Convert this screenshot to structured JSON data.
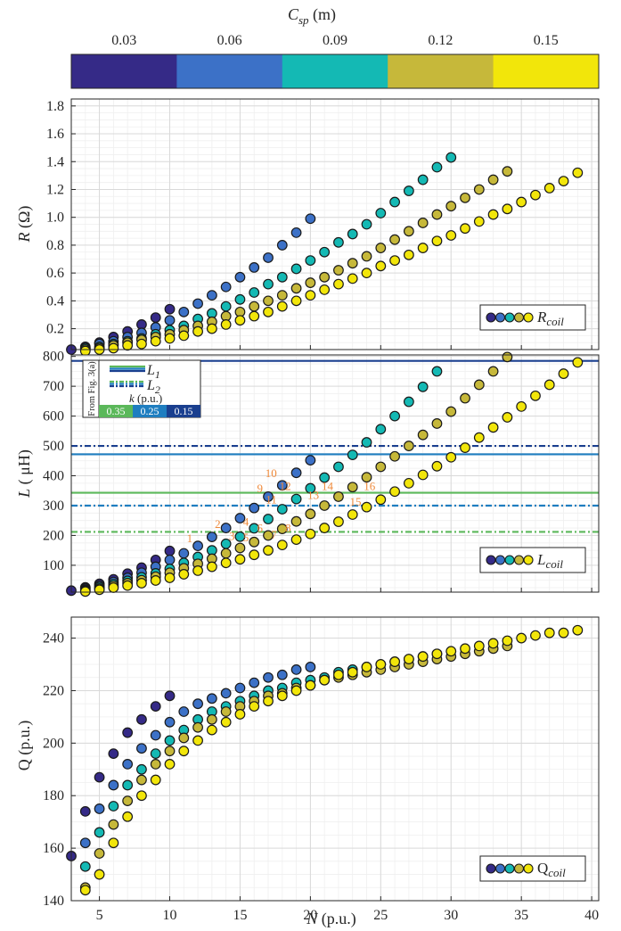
{
  "colors": {
    "cmap": [
      "#352a87",
      "#3c71c7",
      "#14b9b4",
      "#c6b83a",
      "#f2e60a"
    ],
    "grid": "#d9d9d9",
    "axes": "#262626",
    "annot": "#ef8a3b",
    "l1": "#1f5aa8",
    "green": "#5bb85a",
    "blue_mid": "#1f7ec0",
    "navy": "#1a3f8f"
  },
  "colorbar": {
    "label_main": "C",
    "label_sub": "sp",
    "label_unit": " (m)",
    "ticks": [
      "0.03",
      "0.06",
      "0.09",
      "0.12",
      "0.15"
    ]
  },
  "chart_data": [
    {
      "type": "scatter",
      "ylabel_main": "R",
      "ylabel_unit": " (Ω)",
      "ylim": [
        0.05,
        1.85
      ],
      "yticks": [
        0.2,
        0.4,
        0.6,
        0.8,
        1.0,
        1.2,
        1.4,
        1.6,
        1.8
      ],
      "ytick_labels": [
        "0.2",
        "0.4",
        "0.6",
        "0.8",
        "1.0",
        "1.2",
        "1.4",
        "1.6",
        "1.8"
      ],
      "legend_symbol": "R",
      "legend_sub": "coil",
      "legend_position": "lower-right",
      "grid": true,
      "series": [
        {
          "x": [
            3,
            4,
            5,
            6,
            7,
            8,
            9,
            10
          ],
          "y": [
            0.05,
            0.07,
            0.1,
            0.14,
            0.18,
            0.23,
            0.28,
            0.34
          ]
        },
        {
          "x": [
            4,
            5,
            6,
            7,
            8,
            9,
            10,
            11,
            12,
            13,
            14,
            15,
            16,
            17,
            18,
            19,
            20
          ],
          "y": [
            0.06,
            0.09,
            0.11,
            0.14,
            0.17,
            0.21,
            0.26,
            0.32,
            0.38,
            0.44,
            0.5,
            0.57,
            0.64,
            0.71,
            0.8,
            0.89,
            0.99
          ]
        },
        {
          "x": [
            4,
            5,
            6,
            7,
            8,
            9,
            10,
            11,
            12,
            13,
            14,
            15,
            16,
            17,
            18,
            19,
            20,
            21,
            22,
            23,
            24,
            25,
            26,
            27,
            28,
            29,
            30
          ],
          "y": [
            0.06,
            0.07,
            0.09,
            0.11,
            0.13,
            0.16,
            0.19,
            0.22,
            0.27,
            0.31,
            0.36,
            0.41,
            0.46,
            0.52,
            0.57,
            0.63,
            0.69,
            0.75,
            0.82,
            0.88,
            0.95,
            1.03,
            1.11,
            1.19,
            1.27,
            1.36,
            1.43
          ]
        },
        {
          "x": [
            4,
            5,
            6,
            7,
            8,
            9,
            10,
            11,
            12,
            13,
            14,
            15,
            16,
            17,
            18,
            19,
            20,
            21,
            22,
            23,
            24,
            25,
            26,
            27,
            28,
            29,
            30,
            31,
            32,
            33,
            34
          ],
          "y": [
            0.05,
            0.06,
            0.08,
            0.1,
            0.12,
            0.14,
            0.16,
            0.19,
            0.22,
            0.25,
            0.29,
            0.32,
            0.36,
            0.4,
            0.44,
            0.49,
            0.53,
            0.57,
            0.62,
            0.67,
            0.72,
            0.78,
            0.84,
            0.9,
            0.96,
            1.02,
            1.08,
            1.14,
            1.2,
            1.27,
            1.33
          ]
        },
        {
          "x": [
            4,
            5,
            6,
            7,
            8,
            9,
            10,
            11,
            12,
            13,
            14,
            15,
            16,
            17,
            18,
            19,
            20,
            21,
            22,
            23,
            24,
            25,
            26,
            27,
            28,
            29,
            30,
            31,
            32,
            33,
            34,
            35,
            36,
            37,
            38,
            39
          ],
          "y": [
            0.04,
            0.05,
            0.06,
            0.08,
            0.09,
            0.11,
            0.13,
            0.15,
            0.18,
            0.2,
            0.23,
            0.26,
            0.29,
            0.32,
            0.36,
            0.4,
            0.44,
            0.48,
            0.52,
            0.56,
            0.6,
            0.65,
            0.69,
            0.73,
            0.78,
            0.83,
            0.87,
            0.92,
            0.97,
            1.02,
            1.06,
            1.11,
            1.16,
            1.21,
            1.26,
            1.32
          ]
        }
      ]
    },
    {
      "type": "scatter",
      "ylabel_main": "L",
      "ylabel_unit": " ( μH)",
      "ylim": [
        10,
        805
      ],
      "yticks": [
        100,
        200,
        300,
        400,
        500,
        600,
        700,
        800
      ],
      "ytick_labels": [
        "100",
        "200",
        "300",
        "400",
        "500",
        "600",
        "700",
        "800"
      ],
      "legend_symbol": "L",
      "legend_sub": "coil",
      "legend_position": "lower-right",
      "grid": true,
      "hlines": [
        {
          "y": 785,
          "color": "navy",
          "style": "solid"
        },
        {
          "y": 500,
          "color": "navy",
          "style": "dashdot"
        },
        {
          "y": 472,
          "color": "blue_mid",
          "style": "solid"
        },
        {
          "y": 343,
          "color": "green",
          "style": "solid"
        },
        {
          "y": 300,
          "color": "blue_mid",
          "style": "dashdot"
        },
        {
          "y": 212,
          "color": "green",
          "style": "dashdot"
        }
      ],
      "inset": {
        "side_label": "From Fig. 3(a)",
        "l1_main": "L",
        "l1_sub": "1",
        "l2_main": "L",
        "l2_sub": "2",
        "k_label": "k (p.u.)",
        "k_values": [
          "0.35",
          "0.25",
          "0.15"
        ]
      },
      "annotations": [
        {
          "n": "1",
          "x": 12,
          "y": 178
        },
        {
          "n": "2",
          "x": 14,
          "y": 225
        },
        {
          "n": "3",
          "x": 15,
          "y": 185
        },
        {
          "n": "4",
          "x": 16,
          "y": 232
        },
        {
          "n": "5",
          "x": 16,
          "y": 180
        },
        {
          "n": "6",
          "x": 17,
          "y": 212
        },
        {
          "n": "7",
          "x": 18,
          "y": 190
        },
        {
          "n": "8",
          "x": 19,
          "y": 212
        },
        {
          "n": "9",
          "x": 17,
          "y": 345
        },
        {
          "n": "10",
          "x": 18,
          "y": 395
        },
        {
          "n": "11",
          "x": 18,
          "y": 308
        },
        {
          "n": "12",
          "x": 19,
          "y": 352
        },
        {
          "n": "13",
          "x": 21,
          "y": 323
        },
        {
          "n": "14",
          "x": 22,
          "y": 352
        },
        {
          "n": "15",
          "x": 24,
          "y": 300
        },
        {
          "n": "16",
          "x": 25,
          "y": 352
        }
      ],
      "series": [
        {
          "x": [
            3,
            4,
            5,
            6,
            7,
            8,
            9,
            10
          ],
          "y": [
            15,
            26,
            38,
            53,
            72,
            92,
            118,
            148
          ]
        },
        {
          "x": [
            4,
            5,
            6,
            7,
            8,
            9,
            10,
            11,
            12,
            13,
            14,
            15,
            16,
            17,
            18,
            19,
            20
          ],
          "y": [
            22,
            32,
            44,
            58,
            75,
            95,
            118,
            140,
            165,
            195,
            225,
            258,
            292,
            330,
            368,
            410,
            452
          ]
        },
        {
          "x": [
            4,
            5,
            6,
            7,
            8,
            9,
            10,
            11,
            12,
            13,
            14,
            15,
            16,
            17,
            18,
            19,
            20,
            21,
            22,
            23,
            24,
            25,
            26,
            27,
            28,
            29
          ],
          "y": [
            18,
            27,
            37,
            48,
            60,
            73,
            88,
            108,
            128,
            150,
            172,
            196,
            224,
            255,
            288,
            322,
            358,
            394,
            430,
            470,
            512,
            556,
            600,
            648,
            698,
            750
          ]
        },
        {
          "x": [
            4,
            5,
            6,
            7,
            8,
            9,
            10,
            11,
            12,
            13,
            14,
            15,
            16,
            17,
            18,
            19,
            20,
            21,
            22,
            23,
            24,
            25,
            26,
            27,
            28,
            29,
            30,
            31,
            32,
            33,
            34
          ],
          "y": [
            15,
            22,
            31,
            40,
            50,
            62,
            75,
            90,
            105,
            122,
            140,
            158,
            178,
            200,
            222,
            247,
            272,
            300,
            330,
            362,
            395,
            430,
            465,
            500,
            537,
            575,
            615,
            660,
            705,
            750,
            798
          ]
        },
        {
          "x": [
            4,
            5,
            6,
            7,
            8,
            9,
            10,
            11,
            12,
            13,
            14,
            15,
            16,
            17,
            18,
            19,
            20,
            21,
            22,
            23,
            24,
            25,
            26,
            27,
            28,
            29,
            30,
            31,
            32,
            33,
            34,
            35,
            36,
            37,
            38,
            39
          ],
          "y": [
            12,
            18,
            25,
            32,
            40,
            49,
            58,
            70,
            82,
            95,
            108,
            120,
            135,
            150,
            168,
            186,
            205,
            225,
            246,
            270,
            295,
            320,
            347,
            375,
            403,
            432,
            462,
            494,
            528,
            562,
            596,
            632,
            668,
            705,
            742,
            780
          ]
        }
      ]
    },
    {
      "type": "scatter",
      "ylabel_main": "Q (p.u.)",
      "ylabel_unit": "",
      "ylim": [
        140,
        248
      ],
      "yticks": [
        140,
        160,
        180,
        200,
        220,
        240
      ],
      "ytick_labels": [
        "140",
        "160",
        "180",
        "200",
        "220",
        "240"
      ],
      "xlabel_main": "N",
      "xlabel_unit": " (p.u.)",
      "xticks": [
        5,
        10,
        15,
        20,
        25,
        30,
        35,
        40
      ],
      "xtick_labels": [
        "5",
        "10",
        "15",
        "20",
        "25",
        "30",
        "35",
        "40"
      ],
      "xlim": [
        3,
        40.5
      ],
      "legend_symbol": "Q",
      "legend_sub": "coil",
      "legend_position": "lower-right",
      "grid": true,
      "series": [
        {
          "x": [
            3,
            4,
            5,
            6,
            7,
            8,
            9,
            10
          ],
          "y": [
            157,
            174,
            187,
            196,
            204,
            209,
            214,
            218
          ]
        },
        {
          "x": [
            4,
            5,
            6,
            7,
            8,
            9,
            10,
            11,
            12,
            13,
            14,
            15,
            16,
            17,
            18,
            19,
            20
          ],
          "y": [
            162,
            175,
            184,
            192,
            198,
            203,
            208,
            212,
            215,
            217,
            219,
            221,
            223,
            225,
            226,
            228,
            229
          ]
        },
        {
          "x": [
            4,
            5,
            6,
            7,
            8,
            9,
            10,
            11,
            12,
            13,
            14,
            15,
            16,
            17,
            18,
            19,
            20,
            21,
            22,
            23,
            24,
            25,
            26,
            27,
            28,
            29
          ],
          "y": [
            153,
            166,
            176,
            184,
            190,
            196,
            201,
            205,
            209,
            212,
            214,
            216,
            218,
            220,
            221,
            223,
            224,
            225,
            227,
            228,
            229,
            230,
            231,
            232,
            233,
            234
          ]
        },
        {
          "x": [
            4,
            5,
            6,
            7,
            8,
            9,
            10,
            11,
            12,
            13,
            14,
            15,
            16,
            17,
            18,
            19,
            20,
            21,
            22,
            23,
            24,
            25,
            26,
            27,
            28,
            29,
            30,
            31,
            32,
            33,
            34
          ],
          "y": [
            145,
            158,
            169,
            178,
            186,
            192,
            197,
            202,
            206,
            209,
            212,
            214,
            216,
            218,
            219,
            221,
            222,
            224,
            225,
            226,
            227,
            228,
            229,
            230,
            231,
            232,
            233,
            234,
            235,
            236,
            237
          ]
        },
        {
          "x": [
            4,
            5,
            6,
            7,
            8,
            9,
            10,
            11,
            12,
            13,
            14,
            15,
            16,
            17,
            18,
            19,
            20,
            21,
            22,
            23,
            24,
            25,
            26,
            27,
            28,
            29,
            30,
            31,
            32,
            33,
            34,
            35,
            36,
            37,
            38,
            39
          ],
          "y": [
            144,
            150,
            162,
            172,
            180,
            186,
            192,
            197,
            201,
            205,
            208,
            211,
            214,
            216,
            218,
            220,
            222,
            224,
            226,
            227,
            229,
            230,
            231,
            232,
            233,
            234,
            235,
            236,
            237,
            238,
            239,
            240,
            241,
            242,
            242,
            243
          ]
        }
      ]
    }
  ]
}
